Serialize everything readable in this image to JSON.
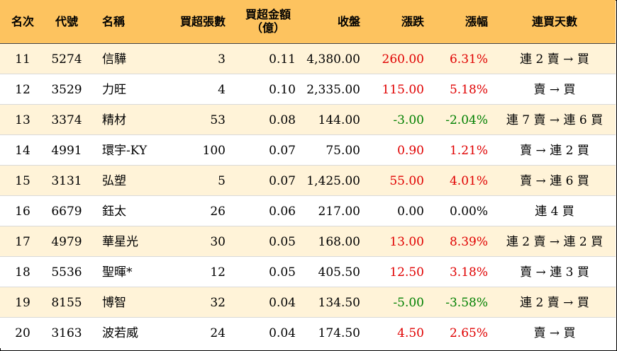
{
  "headers": {
    "rank": "名次",
    "code": "代號",
    "name": "名稱",
    "net_buy_lots": "買超張數",
    "net_buy_amount_line1": "買超金額",
    "net_buy_amount_line2": "（億）",
    "close": "收盤",
    "change": "漲跌",
    "change_pct": "漲幅",
    "streak": "連買天數"
  },
  "colors": {
    "header_bg": "#fdc35f",
    "odd_row_bg": "#fff3d8",
    "up": "#e00000",
    "down": "#008000",
    "flat": "#000000"
  },
  "rows": [
    {
      "rank": "11",
      "code": "5274",
      "name": "信驊",
      "lots": "3",
      "amount": "0.11",
      "close": "4,380.00",
      "change": "260.00",
      "pct": "6.31%",
      "streak": "連 2 賣 → 買",
      "trend": "up"
    },
    {
      "rank": "12",
      "code": "3529",
      "name": "力旺",
      "lots": "4",
      "amount": "0.10",
      "close": "2,335.00",
      "change": "115.00",
      "pct": "5.18%",
      "streak": "賣 → 買",
      "trend": "up"
    },
    {
      "rank": "13",
      "code": "3374",
      "name": "精材",
      "lots": "53",
      "amount": "0.08",
      "close": "144.00",
      "change": "-3.00",
      "pct": "-2.04%",
      "streak": "連 7 賣 → 連 6 買",
      "trend": "down"
    },
    {
      "rank": "14",
      "code": "4991",
      "name": "環宇-KY",
      "lots": "100",
      "amount": "0.07",
      "close": "75.00",
      "change": "0.90",
      "pct": "1.21%",
      "streak": "賣 → 連 2 買",
      "trend": "up"
    },
    {
      "rank": "15",
      "code": "3131",
      "name": "弘塑",
      "lots": "5",
      "amount": "0.07",
      "close": "1,425.00",
      "change": "55.00",
      "pct": "4.01%",
      "streak": "賣 → 連 6 買",
      "trend": "up"
    },
    {
      "rank": "16",
      "code": "6679",
      "name": "鈺太",
      "lots": "26",
      "amount": "0.06",
      "close": "217.00",
      "change": "0.00",
      "pct": "0.00%",
      "streak": "連 4 買",
      "trend": "flat"
    },
    {
      "rank": "17",
      "code": "4979",
      "name": "華星光",
      "lots": "30",
      "amount": "0.05",
      "close": "168.00",
      "change": "13.00",
      "pct": "8.39%",
      "streak": "連 2 賣 → 連 2 買",
      "trend": "up"
    },
    {
      "rank": "18",
      "code": "5536",
      "name": "聖暉*",
      "lots": "12",
      "amount": "0.05",
      "close": "405.50",
      "change": "12.50",
      "pct": "3.18%",
      "streak": "賣 → 連 3 買",
      "trend": "up"
    },
    {
      "rank": "19",
      "code": "8155",
      "name": "博智",
      "lots": "32",
      "amount": "0.04",
      "close": "134.50",
      "change": "-5.00",
      "pct": "-3.58%",
      "streak": "連 2 賣 → 買",
      "trend": "down"
    },
    {
      "rank": "20",
      "code": "3163",
      "name": "波若威",
      "lots": "24",
      "amount": "0.04",
      "close": "174.50",
      "change": "4.50",
      "pct": "2.65%",
      "streak": "賣 → 買",
      "trend": "up"
    }
  ]
}
